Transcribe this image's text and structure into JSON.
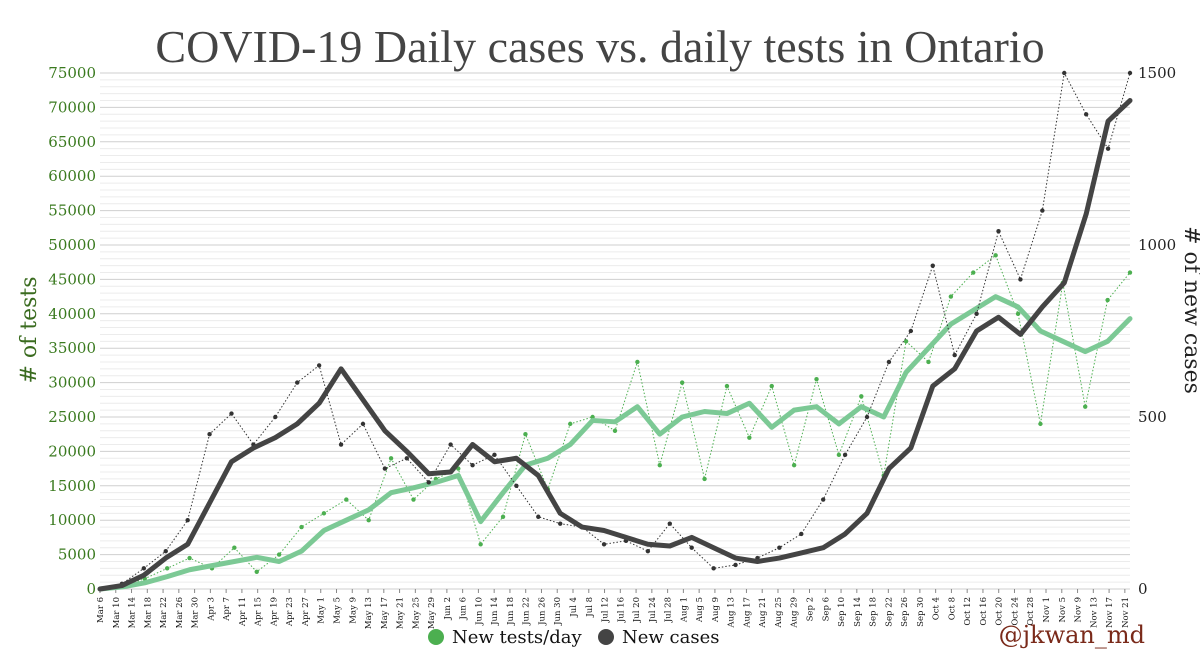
{
  "chart_data": {
    "type": "line",
    "title": "COVID-19 Daily cases vs. daily tests in Ontario",
    "ylabel": "# of tests",
    "ylabel_right": "# of new cases",
    "ylim": [
      0,
      75000
    ],
    "ylim_right": [
      0,
      1500
    ],
    "yticks_left": [
      "0",
      "5000",
      "10000",
      "15000",
      "20000",
      "25000",
      "30000",
      "35000",
      "40000",
      "45000",
      "50000",
      "55000",
      "60000",
      "65000",
      "70000",
      "75000"
    ],
    "yticks_right": [
      "0",
      "500",
      "1000",
      "1500"
    ],
    "x_labels": [
      "Mar 6",
      "Mar 10",
      "Mar 14",
      "Mar 18",
      "Mar 22",
      "Mar 26",
      "Mar 30",
      "Apr 3",
      "Apr 7",
      "Apr 11",
      "Apr 15",
      "Apr 19",
      "Apr 23",
      "Apr 27",
      "May 1",
      "May 5",
      "May 9",
      "May 13",
      "May 17",
      "May 21",
      "May 25",
      "May 29",
      "Jun 2",
      "Jun 6",
      "Jun 10",
      "Jun 14",
      "Jun 18",
      "Jun 22",
      "Jun 26",
      "Jun 30",
      "Jul 4",
      "Jul 8",
      "Jul 12",
      "Jul 16",
      "Jul 20",
      "Jul 24",
      "Jul 28",
      "Aug 1",
      "Aug 5",
      "Aug 9",
      "Aug 13",
      "Aug 17",
      "Aug 21",
      "Aug 25",
      "Aug 29",
      "Sep 2",
      "Sep 6",
      "Sep 10",
      "Sep 14",
      "Sep 18",
      "Sep 22",
      "Sep 26",
      "Sep 30",
      "Oct 4",
      "Oct 8",
      "Oct 12",
      "Oct 16",
      "Oct 20",
      "Oct 24",
      "Oct 28",
      "Nov 1",
      "Nov 5",
      "Nov 9",
      "Nov 13",
      "Nov 17",
      "Nov 21"
    ],
    "grid": true,
    "legend_position": "bottom-center",
    "series": [
      {
        "name": "New tests/day",
        "axis": "left",
        "color": "#7cc995",
        "dot_color": "#4caf50",
        "smoothed": [
          0,
          300,
          900,
          1800,
          2800,
          3400,
          4000,
          4600,
          4000,
          5500,
          8500,
          10000,
          11500,
          14000,
          14700,
          15500,
          16500,
          9800,
          14000,
          18000,
          19000,
          21000,
          24500,
          24300,
          26500,
          22500,
          25000,
          25800,
          25500,
          27000,
          23500,
          26000,
          26500,
          24000,
          26500,
          25000,
          31500,
          35000,
          38500,
          40500,
          42500,
          41000,
          37500,
          36000,
          34500,
          36000,
          39300
        ],
        "raw_approx": [
          0,
          400,
          1500,
          3000,
          4500,
          3000,
          6000,
          2500,
          5000,
          9000,
          11000,
          13000,
          10000,
          19000,
          13000,
          16000,
          17500,
          6500,
          10500,
          22500,
          14500,
          24000,
          25000,
          23000,
          33000,
          18000,
          30000,
          16000,
          29500,
          22000,
          29500,
          18000,
          30500,
          19500,
          28000,
          16500,
          36000,
          33000,
          42500,
          46000,
          48500,
          40000,
          24000,
          44500,
          26500,
          42000,
          46000
        ]
      },
      {
        "name": "New cases",
        "axis": "right",
        "color": "#444444",
        "dot_color": "#333333",
        "smoothed": [
          0,
          10,
          40,
          90,
          130,
          250,
          370,
          410,
          440,
          480,
          540,
          640,
          550,
          460,
          400,
          335,
          340,
          420,
          370,
          380,
          330,
          220,
          180,
          170,
          150,
          130,
          125,
          150,
          120,
          90,
          80,
          90,
          105,
          120,
          160,
          220,
          350,
          410,
          590,
          640,
          750,
          790,
          740,
          820,
          890,
          1090,
          1360,
          1420
        ],
        "raw_approx": [
          0,
          15,
          60,
          110,
          200,
          450,
          510,
          420,
          500,
          600,
          650,
          420,
          480,
          350,
          380,
          310,
          420,
          360,
          390,
          300,
          210,
          190,
          180,
          130,
          140,
          110,
          190,
          120,
          60,
          70,
          90,
          120,
          160,
          260,
          390,
          500,
          660,
          750,
          940,
          680,
          800,
          1040,
          900,
          1100,
          1500,
          1380,
          1280,
          1500
        ]
      }
    ]
  },
  "credit": "@jkwan_md"
}
